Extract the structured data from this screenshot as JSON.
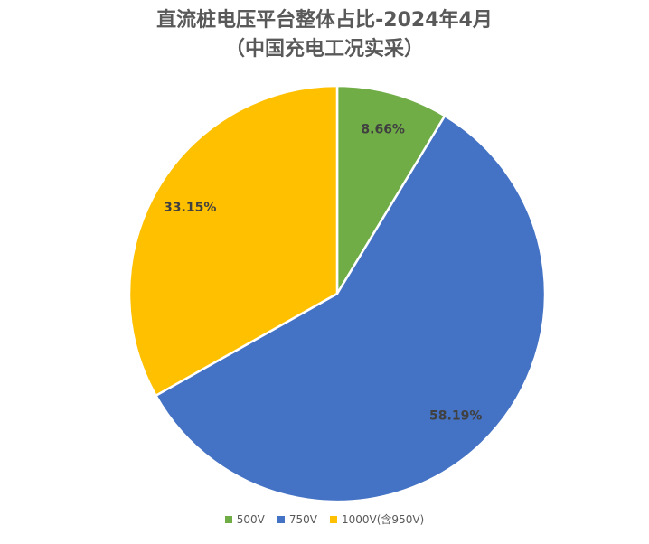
{
  "chart_data": {
    "type": "pie",
    "title": "直流桩电压平台整体占比-2024年4月",
    "subtitle": "（中国充电工况实采）",
    "categories": [
      "500V",
      "750V",
      "1000V(含950V)"
    ],
    "values": [
      8.66,
      58.19,
      33.15
    ],
    "labels": [
      "8.66%",
      "58.19%",
      "33.15%"
    ],
    "colors": [
      "#70AD47",
      "#4472C4",
      "#FFC000"
    ],
    "legend_position": "bottom"
  }
}
